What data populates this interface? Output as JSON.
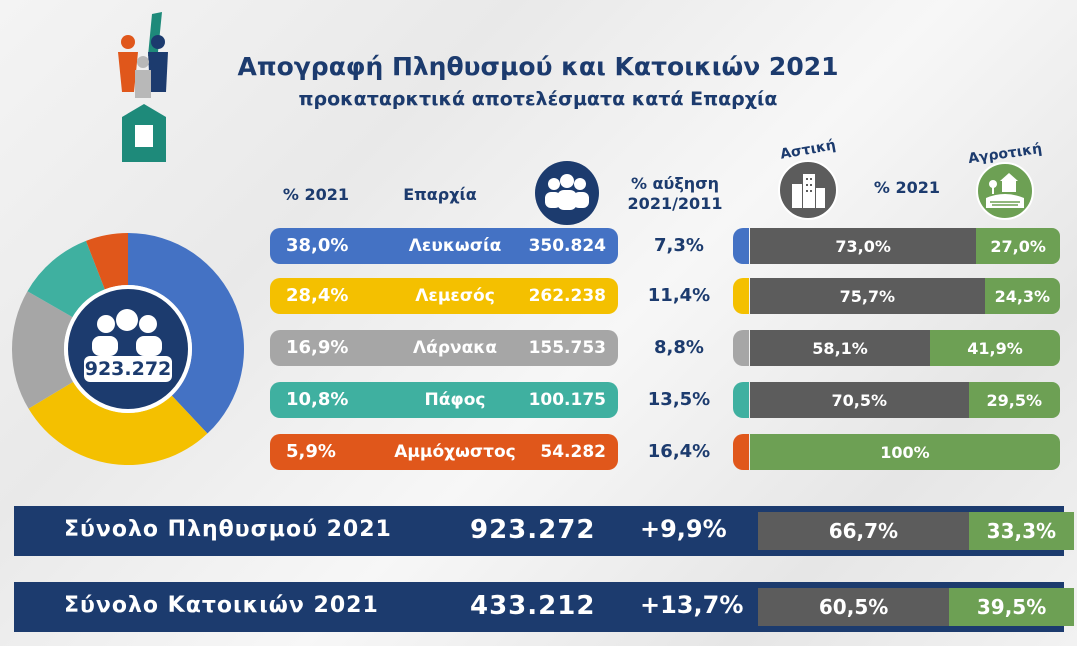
{
  "header": {
    "title": "Απογραφή Πληθυσμού και Κατοικιών 2021",
    "subtitle": "προκαταρκτικά αποτελέσματα κατά Επαρχία"
  },
  "columns": {
    "pct_2021": "% 2021",
    "district": "Επαρχία",
    "growth_line1": "% αύξηση",
    "growth_line2": "2021/2011",
    "urban": "Αστική",
    "rural": "Αγροτική",
    "pct_2021_right": "% 2021"
  },
  "donut_center": "923.272",
  "rows": [
    {
      "pct": "38,0%",
      "name": "Λευκωσία",
      "pop": "350.824",
      "growth": "7,3%",
      "urban": "73,0%",
      "rural": "27,0%",
      "urban_share": 73.0,
      "color": "#4472c4"
    },
    {
      "pct": "28,4%",
      "name": "Λεμεσός",
      "pop": "262.238",
      "growth": "11,4%",
      "urban": "75,7%",
      "rural": "24,3%",
      "urban_share": 75.7,
      "color": "#f4c000"
    },
    {
      "pct": "16,9%",
      "name": "Λάρνακα",
      "pop": "155.753",
      "growth": "8,8%",
      "urban": "58,1%",
      "rural": "41,9%",
      "urban_share": 58.1,
      "color": "#a6a6a6"
    },
    {
      "pct": "10,8%",
      "name": "Πάφος",
      "pop": "100.175",
      "growth": "13,5%",
      "urban": "70,5%",
      "rural": "29,5%",
      "urban_share": 70.5,
      "color": "#3fb0a0"
    },
    {
      "pct": "5,9%",
      "name": "Αμμόχωστος",
      "pop": "54.282",
      "growth": "16,4%",
      "urban": "",
      "rural": "100%",
      "urban_share": 0,
      "color": "#e0571b"
    }
  ],
  "totals": [
    {
      "label": "Σύνολο Πληθυσμού 2021",
      "value": "923.272",
      "growth": "+9,9%",
      "urban": "66,7%",
      "rural": "33,3%",
      "urban_share": 66.7
    },
    {
      "label": "Σύνολο Κατοικιών 2021",
      "value": "433.212",
      "growth": "+13,7%",
      "urban": "60,5%",
      "rural": "39,5%",
      "urban_share": 60.5
    }
  ],
  "colors": {
    "navy": "#1c3b6e",
    "urban_grey": "#5c5c5c",
    "rural_green": "#6da054"
  },
  "chart_data": {
    "type": "pie",
    "categories": [
      "Λευκωσία",
      "Λεμεσός",
      "Λάρνακα",
      "Πάφος",
      "Αμμόχωστος"
    ],
    "values": [
      38.0,
      28.4,
      16.9,
      10.8,
      5.9
    ],
    "colors": [
      "#4472c4",
      "#f4c000",
      "#a6a6a6",
      "#3fb0a0",
      "#e0571b"
    ],
    "donut": true,
    "center_label": "923.272"
  }
}
